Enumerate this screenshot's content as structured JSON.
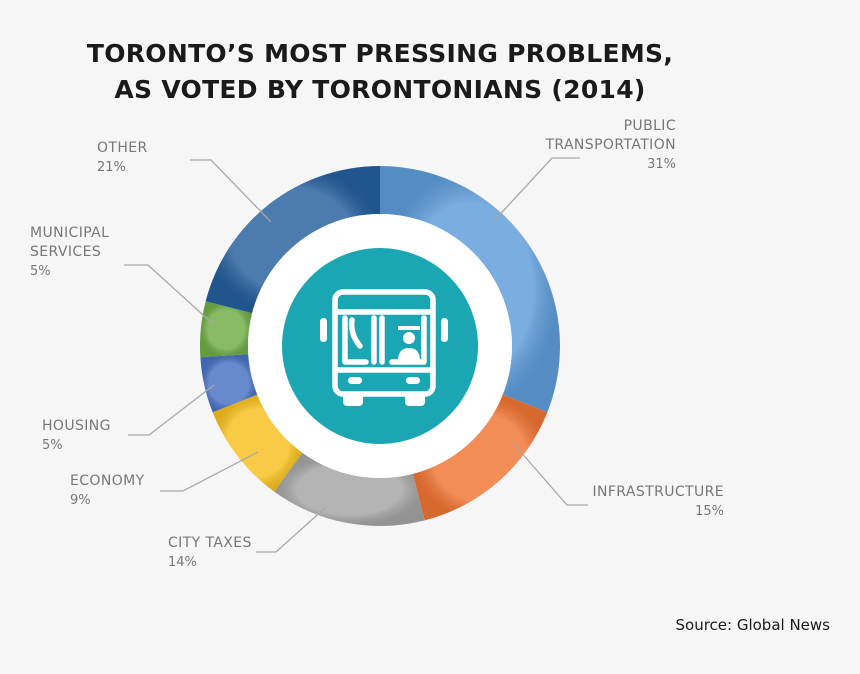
{
  "chart_data": {
    "type": "pie",
    "title_lines": [
      "TORONTO’S MOST PRESSING PROBLEMS,",
      "AS VOTED BY TORONTONIANS (2014)"
    ],
    "slices": [
      {
        "label_lines": [
          "PUBLIC",
          "TRANSPORTATION"
        ],
        "value": 31,
        "value_label": "31%",
        "color": "#5d9bd9"
      },
      {
        "label_lines": [
          "INFRASTRUCTURE"
        ],
        "value": 15,
        "value_label": "15%",
        "color": "#ef7433"
      },
      {
        "label_lines": [
          "CITY TAXES"
        ],
        "value": 14,
        "value_label": "14%",
        "color": "#a3a3a3"
      },
      {
        "label_lines": [
          "ECONOMY"
        ],
        "value": 9,
        "value_label": "9%",
        "color": "#f6bf1c"
      },
      {
        "label_lines": [
          "HOUSING"
        ],
        "value": 5,
        "value_label": "5%",
        "color": "#4671c2"
      },
      {
        "label_lines": [
          "MUNICIPAL",
          "SERVICES"
        ],
        "value": 5,
        "value_label": "5%",
        "color": "#6fac45"
      },
      {
        "label_lines": [
          "OTHER"
        ],
        "value": 21,
        "value_label": "21%",
        "color": "#255e9d"
      }
    ],
    "center_icon": "bus-icon",
    "center_color": "#1aa7b3",
    "source": "Source: Global News"
  }
}
